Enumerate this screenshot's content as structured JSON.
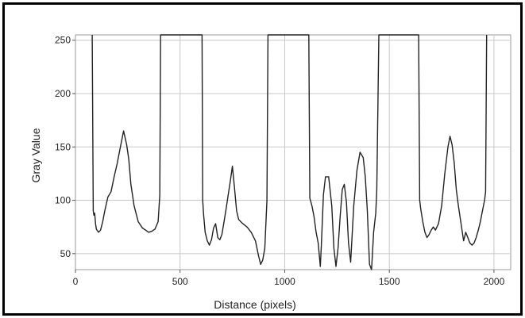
{
  "chart_data": {
    "type": "line",
    "title": "",
    "xlabel": "Distance (pixels)",
    "ylabel": "Gray Value",
    "xlim": [
      0,
      2080
    ],
    "ylim": [
      35,
      255
    ],
    "grid": true,
    "legend": "none",
    "x_ticks": [
      0,
      500,
      1000,
      1500,
      2000
    ],
    "y_ticks": [
      50,
      100,
      150,
      200,
      250
    ],
    "line_color": "#222222",
    "series": [
      {
        "x": [
          80,
          85,
          88,
          92,
          96,
          100,
          110,
          120,
          130,
          140,
          155,
          170,
          185,
          200,
          215,
          230,
          245,
          255,
          265,
          280,
          300,
          320,
          335,
          350,
          365,
          380,
          395,
          403,
          407,
          605,
          608,
          612,
          620,
          630,
          640,
          650,
          660,
          670,
          680,
          690,
          700,
          710,
          720,
          730,
          740,
          750,
          760,
          770,
          780,
          790,
          800,
          820,
          840,
          860,
          875,
          885,
          895,
          905,
          915,
          920,
          1115,
          1120,
          1130,
          1140,
          1150,
          1160,
          1170,
          1175,
          1185,
          1195,
          1210,
          1225,
          1235,
          1245,
          1255,
          1265,
          1275,
          1285,
          1295,
          1305,
          1315,
          1330,
          1345,
          1360,
          1375,
          1385,
          1395,
          1405,
          1415,
          1425,
          1435,
          1440,
          1450,
          1457,
          1462,
          1640,
          1645,
          1650,
          1660,
          1670,
          1680,
          1690,
          1700,
          1710,
          1720,
          1735,
          1750,
          1765,
          1780,
          1790,
          1800,
          1810,
          1820,
          1830,
          1845,
          1855,
          1865,
          1875,
          1885,
          1895,
          1905,
          1915,
          1925,
          1935,
          1945,
          1955,
          1960,
          1965
        ],
        "y": [
          255,
          90,
          86,
          88,
          78,
          73,
          70,
          72,
          80,
          90,
          103,
          108,
          122,
          135,
          150,
          165,
          152,
          138,
          115,
          95,
          80,
          74,
          72,
          70,
          71,
          73,
          80,
          105,
          255,
          255,
          100,
          88,
          70,
          62,
          58,
          63,
          74,
          78,
          65,
          63,
          68,
          80,
          92,
          105,
          118,
          132,
          112,
          90,
          82,
          80,
          78,
          75,
          70,
          62,
          48,
          40,
          44,
          55,
          100,
          255,
          255,
          102,
          95,
          85,
          70,
          60,
          38,
          58,
          105,
          122,
          122,
          95,
          55,
          38,
          55,
          85,
          110,
          115,
          98,
          60,
          42,
          95,
          128,
          145,
          140,
          122,
          90,
          40,
          35,
          70,
          88,
          110,
          255,
          255,
          255,
          255,
          100,
          92,
          80,
          70,
          65,
          68,
          72,
          75,
          72,
          78,
          95,
          125,
          150,
          160,
          152,
          135,
          110,
          95,
          75,
          62,
          70,
          65,
          60,
          58,
          60,
          65,
          72,
          80,
          90,
          100,
          108,
          255
        ]
      }
    ]
  }
}
